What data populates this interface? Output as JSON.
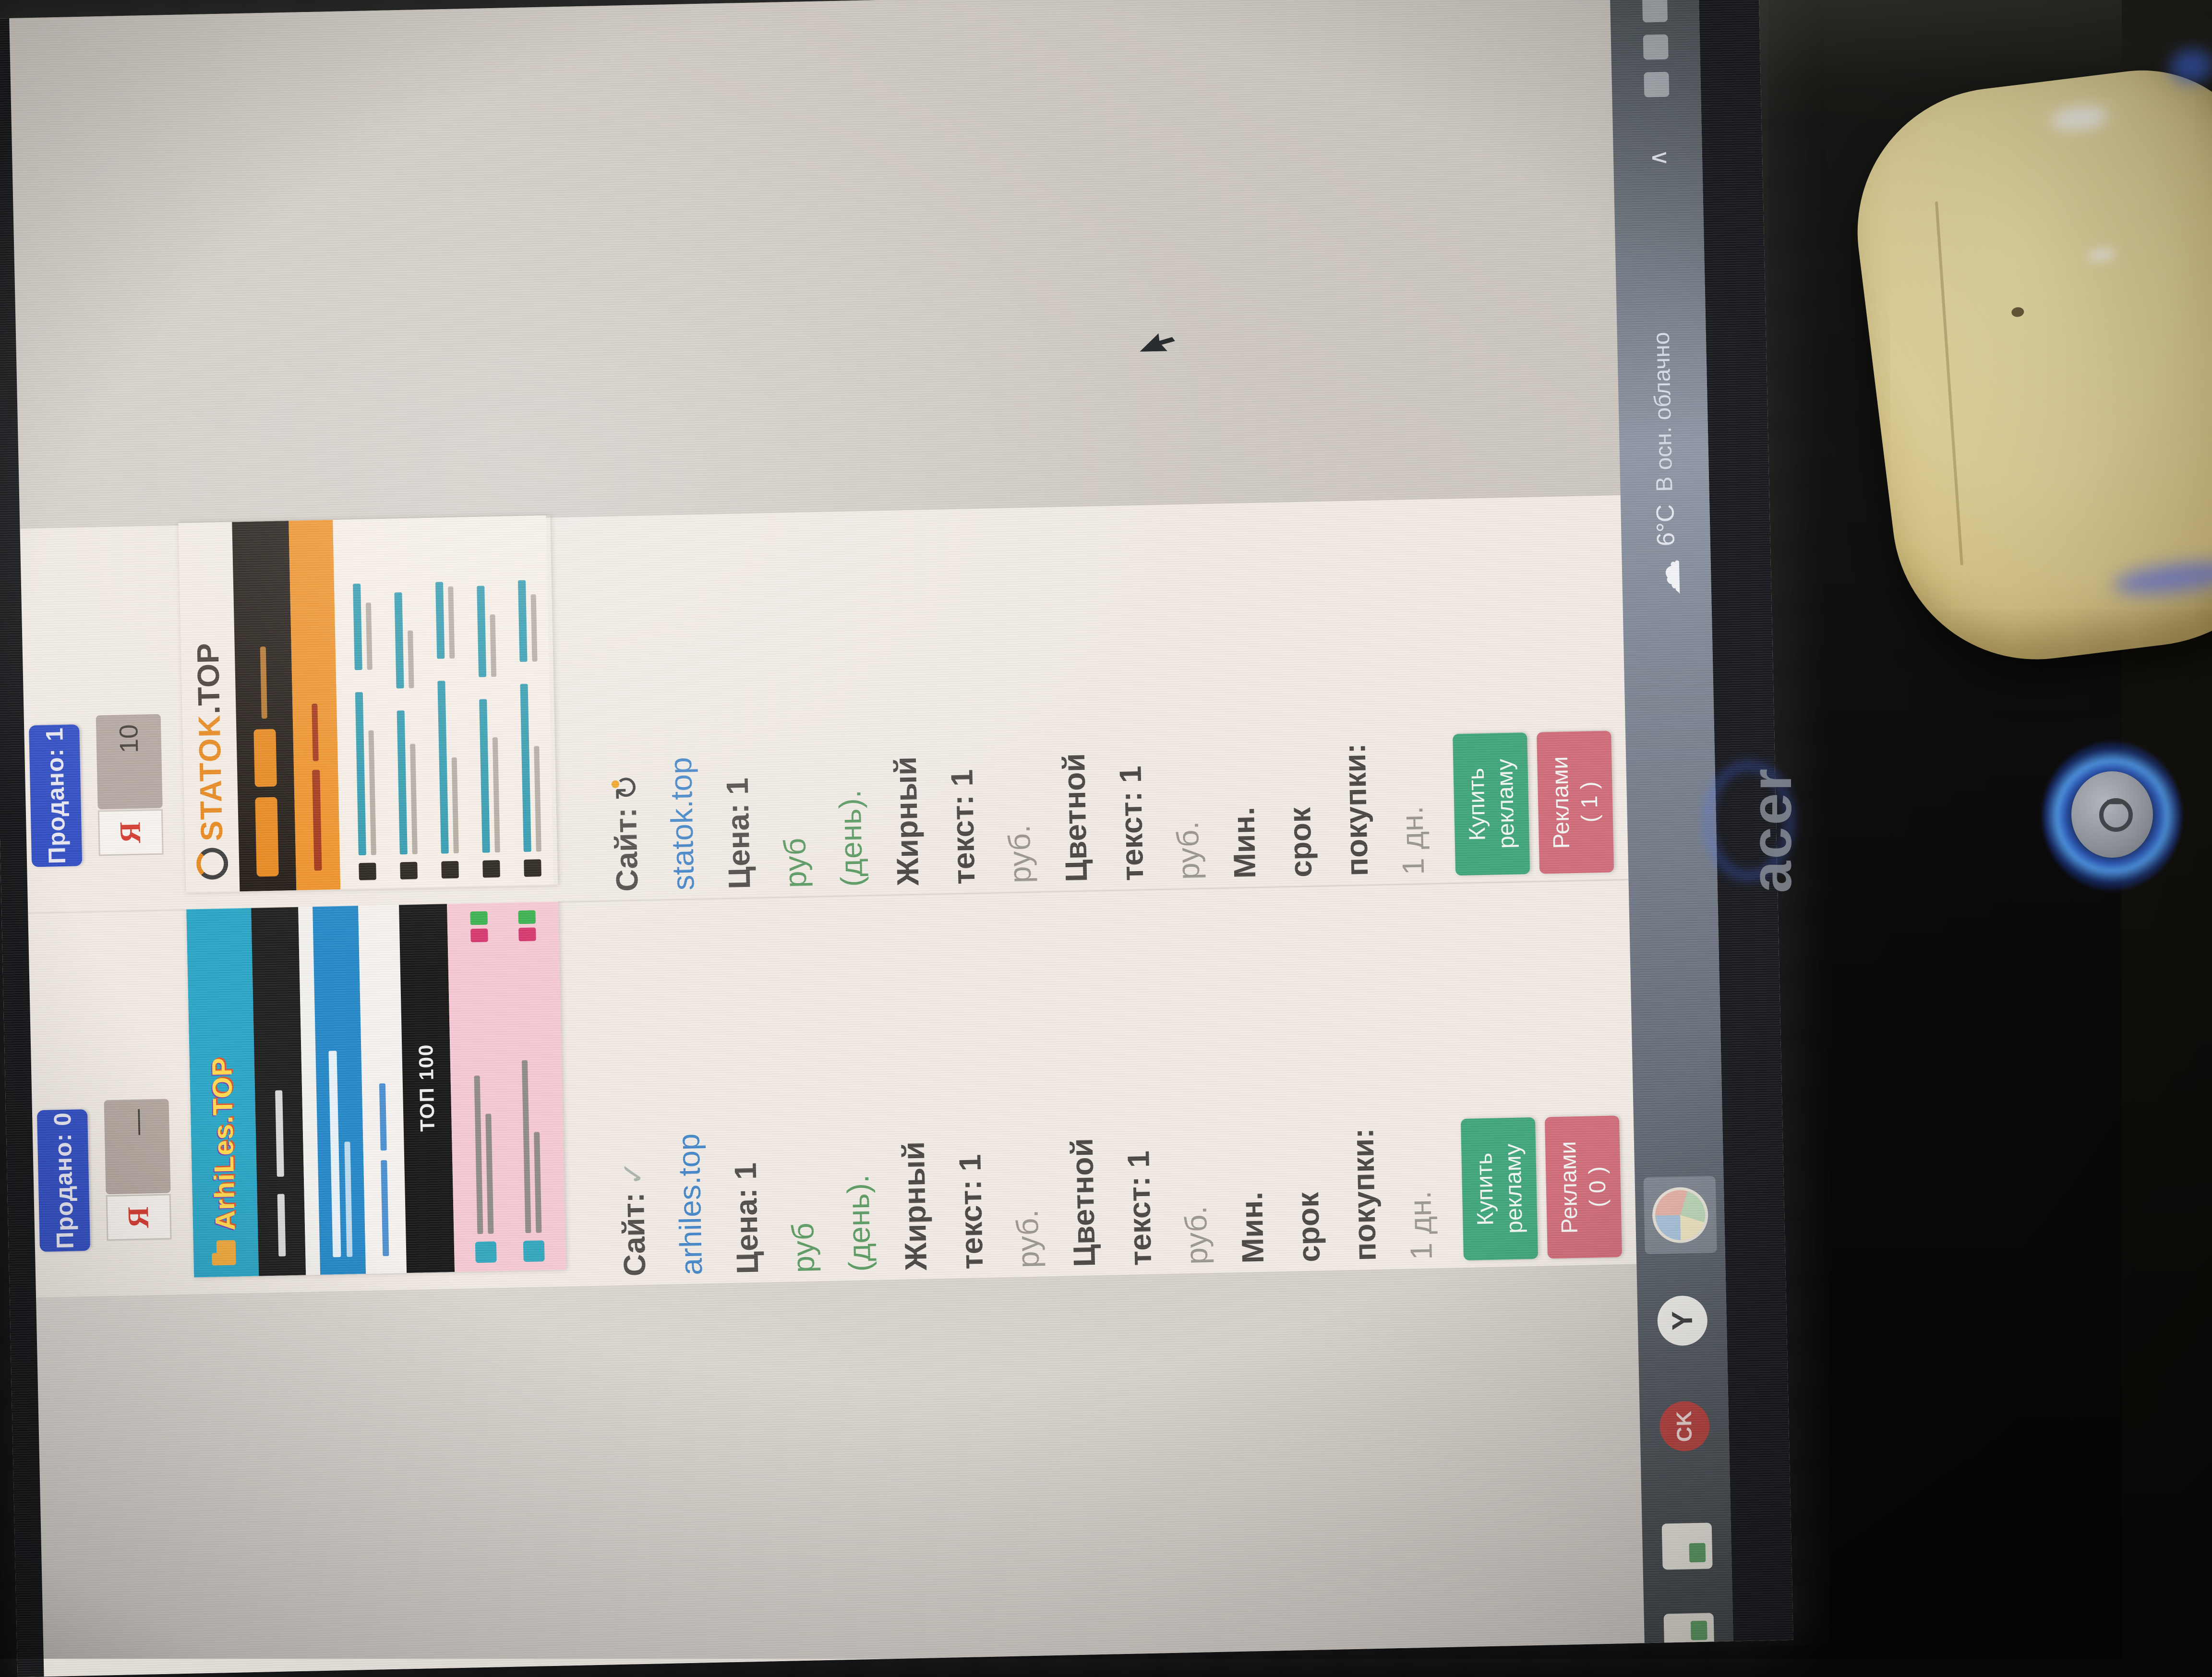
{
  "cards": [
    {
      "header_label": "Продано: 0",
      "counter_value": "—",
      "site_label": "Сайт:",
      "site_icon": "check-icon",
      "site_name": "arhiles.top",
      "banner_name": "arhiles-banner",
      "banner_logo": "ArhiLes.TOP",
      "banner_dark_label": "ТОП 100",
      "buy_line1": "Купить",
      "buy_line2": "рекламу",
      "ads_line1": "Реклами",
      "ads_line2": "( 0 )"
    },
    {
      "header_label": "Продано: 1",
      "counter_value": "10",
      "site_label": "Сайт:",
      "site_icon": "refresh-arrow-icon",
      "site_name": "statok.top",
      "banner_name": "statok-banner",
      "banner_logo_main": "STATOK",
      "banner_logo_suffix": ".TOP",
      "buy_line1": "Купить",
      "buy_line2": "рекламу",
      "ads_line1": "Реклами",
      "ads_line2": "( 1 )"
    }
  ],
  "price_lines": [
    {
      "t": "Цена: 1",
      "c": "strong"
    },
    {
      "t": "руб",
      "c": "green"
    },
    {
      "t": "(день).",
      "c": "green"
    },
    {
      "t": "Жирный",
      "c": "bold"
    },
    {
      "t": "текст: 1",
      "c": "bold"
    },
    {
      "t": "руб.",
      "c": "grey"
    },
    {
      "t": "Цветной",
      "c": "bold"
    },
    {
      "t": "текст: 1",
      "c": "bold"
    },
    {
      "t": "руб.",
      "c": "grey"
    },
    {
      "t": "Мин.",
      "c": "bold"
    },
    {
      "t": "срок",
      "c": "bold"
    },
    {
      "t": "покупки:",
      "c": "bold"
    },
    {
      "t": "1 дн.",
      "c": "grey"
    }
  ],
  "icons": {
    "yandex_glyph": "Я",
    "statok_favicon_glyph": "↻",
    "arhiles_favicon_glyph": "✓",
    "cloud_glyph": "☁",
    "chevron_glyph": "∧",
    "ok_circle_label": "CK"
  },
  "taskbar": {
    "weather_temp": "6°C",
    "weather_condition": "В осн. облачно"
  },
  "laptop": {
    "brand": "acer"
  }
}
